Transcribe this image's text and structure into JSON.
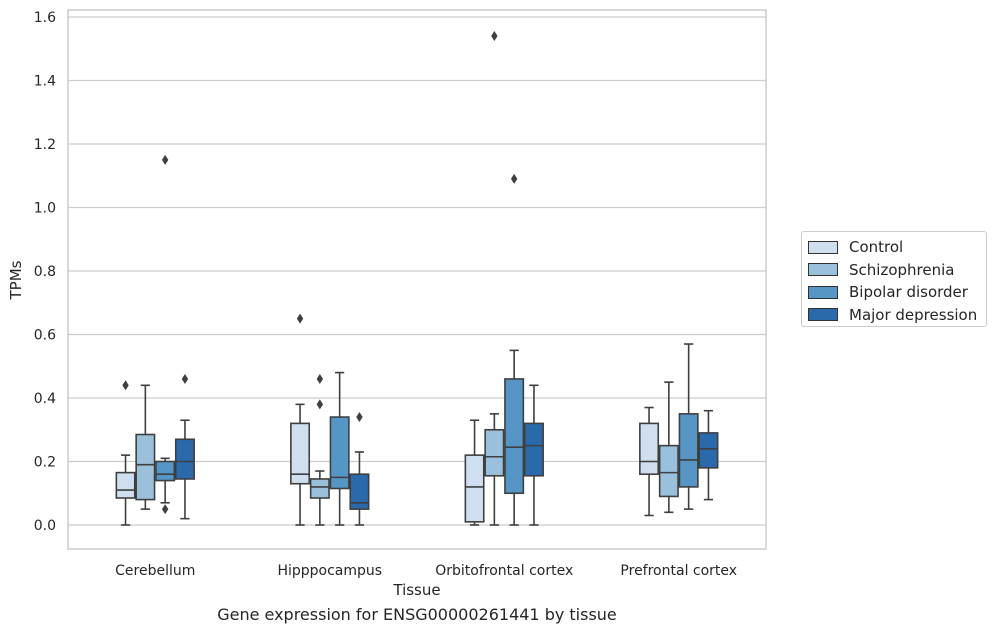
{
  "chart_data": {
    "type": "box",
    "title": "",
    "xlabel": "Tissue",
    "ylabel": "TPMs",
    "caption": "Gene expression for ENSG00000261441 by tissue",
    "ylim": [
      -0.075,
      1.62
    ],
    "yticks": [
      "0.0",
      "0.2",
      "0.4",
      "0.6",
      "0.8",
      "1.0",
      "1.2",
      "1.4",
      "1.6"
    ],
    "categories": [
      "Cerebellum",
      "Hipppocampus",
      "Orbitofrontal cortex",
      "Prefrontal cortex"
    ],
    "grid": true,
    "legend_position": "right",
    "series": [
      {
        "name": "Control",
        "color": "#d0dfef",
        "boxes": [
          {
            "whislo": 0.0,
            "q1": 0.085,
            "med": 0.11,
            "q3": 0.165,
            "whishi": 0.22,
            "fliers": [
              0.44
            ]
          },
          {
            "whislo": 0.0,
            "q1": 0.13,
            "med": 0.16,
            "q3": 0.32,
            "whishi": 0.38,
            "fliers": [
              0.65
            ]
          },
          {
            "whislo": 0.0,
            "q1": 0.01,
            "med": 0.12,
            "q3": 0.22,
            "whishi": 0.33,
            "fliers": []
          },
          {
            "whislo": 0.03,
            "q1": 0.16,
            "med": 0.2,
            "q3": 0.32,
            "whishi": 0.37,
            "fliers": []
          }
        ]
      },
      {
        "name": "Schizophrenia",
        "color": "#9ac0db",
        "boxes": [
          {
            "whislo": 0.05,
            "q1": 0.08,
            "med": 0.19,
            "q3": 0.285,
            "whishi": 0.44,
            "fliers": []
          },
          {
            "whislo": 0.0,
            "q1": 0.085,
            "med": 0.12,
            "q3": 0.145,
            "whishi": 0.17,
            "fliers": [
              0.38,
              0.46
            ]
          },
          {
            "whislo": 0.0,
            "q1": 0.155,
            "med": 0.215,
            "q3": 0.3,
            "whishi": 0.35,
            "fliers": [
              1.54
            ]
          },
          {
            "whislo": 0.04,
            "q1": 0.09,
            "med": 0.165,
            "q3": 0.25,
            "whishi": 0.45,
            "fliers": []
          }
        ]
      },
      {
        "name": "Bipolar disorder",
        "color": "#5596c6",
        "boxes": [
          {
            "whislo": 0.07,
            "q1": 0.14,
            "med": 0.16,
            "q3": 0.2,
            "whishi": 0.21,
            "fliers": [
              0.05,
              1.15
            ]
          },
          {
            "whislo": 0.0,
            "q1": 0.115,
            "med": 0.15,
            "q3": 0.34,
            "whishi": 0.48,
            "fliers": []
          },
          {
            "whislo": 0.0,
            "q1": 0.1,
            "med": 0.245,
            "q3": 0.46,
            "whishi": 0.55,
            "fliers": [
              1.09
            ]
          },
          {
            "whislo": 0.05,
            "q1": 0.12,
            "med": 0.205,
            "q3": 0.35,
            "whishi": 0.57,
            "fliers": []
          }
        ]
      },
      {
        "name": "Major depression",
        "color": "#2a6aab",
        "boxes": [
          {
            "whislo": 0.02,
            "q1": 0.145,
            "med": 0.2,
            "q3": 0.27,
            "whishi": 0.33,
            "fliers": [
              0.46
            ]
          },
          {
            "whislo": 0.0,
            "q1": 0.05,
            "med": 0.07,
            "q3": 0.16,
            "whishi": 0.23,
            "fliers": [
              0.34
            ]
          },
          {
            "whislo": 0.0,
            "q1": 0.155,
            "med": 0.25,
            "q3": 0.32,
            "whishi": 0.44,
            "fliers": []
          },
          {
            "whislo": 0.08,
            "q1": 0.18,
            "med": 0.24,
            "q3": 0.29,
            "whishi": 0.36,
            "fliers": []
          }
        ]
      }
    ]
  }
}
